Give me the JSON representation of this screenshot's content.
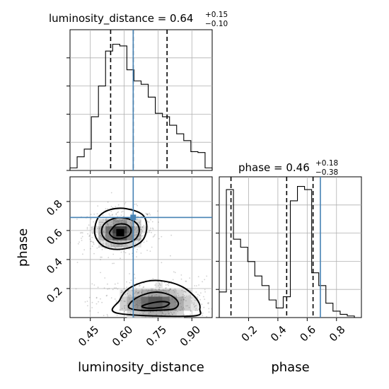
{
  "chart_data": [
    {
      "type": "histogram",
      "parameter": "luminosity_distance",
      "title": {
        "main": "luminosity_distance = 0.64",
        "plus": "+0.15",
        "minus": "−0.10"
      },
      "xlim": [
        0.36,
        0.99
      ],
      "xticks": [
        0.45,
        0.6,
        0.75,
        0.9
      ],
      "xtick_labels": [
        "0.45",
        "0.60",
        "0.75",
        "0.90"
      ],
      "bin_edges": [
        0.36,
        0.3915,
        0.423,
        0.4545,
        0.486,
        0.5175,
        0.549,
        0.5805,
        0.612,
        0.6435,
        0.675,
        0.7065,
        0.738,
        0.7695,
        0.801,
        0.8325,
        0.864,
        0.8955,
        0.927,
        0.9585,
        0.99
      ],
      "counts": [
        0.6,
        3.2,
        5.0,
        12.6,
        19.8,
        28.0,
        29.6,
        29.2,
        23.6,
        21.0,
        20.2,
        17.2,
        13.4,
        12.6,
        10.6,
        8.6,
        7.0,
        4.4,
        4.2,
        0.6
      ],
      "ylim": [
        0,
        33
      ],
      "quantile_lines": [
        0.54,
        0.64,
        0.79
      ],
      "truth": 0.64
    },
    {
      "type": "histogram",
      "parameter": "phase",
      "title": {
        "main": "phase = 0.46",
        "plus": "+0.18",
        "minus": "−0.38"
      },
      "xlim": [
        0.0,
        0.97
      ],
      "xticks": [
        0.2,
        0.4,
        0.6,
        0.8
      ],
      "xtick_labels": [
        "0.2",
        "0.4",
        "0.6",
        "0.8"
      ],
      "bin_edges": [
        0.0,
        0.0485,
        0.097,
        0.1455,
        0.194,
        0.2425,
        0.291,
        0.3395,
        0.388,
        0.4365,
        0.485,
        0.5335,
        0.582,
        0.6305,
        0.679,
        0.7275,
        0.776,
        0.825,
        0.8735,
        0.922,
        0.97
      ],
      "counts": [
        8.0,
        40.0,
        24.5,
        22.0,
        17.5,
        13.0,
        10.0,
        5.5,
        3.0,
        6.5,
        36.5,
        41.0,
        40.0,
        14.0,
        10.0,
        4.5,
        2.0,
        1.0,
        0.5,
        0.0
      ],
      "ylim": [
        0,
        44
      ],
      "quantile_lines": [
        0.08,
        0.46,
        0.64
      ],
      "truth": 0.69
    },
    {
      "type": "scatter",
      "x_parameter": "luminosity_distance",
      "y_parameter": "phase",
      "xlabel": "luminosity_distance",
      "ylabel": "phase",
      "xlim": [
        0.36,
        0.99
      ],
      "ylim": [
        0.0,
        0.97
      ],
      "yticks": [
        0.2,
        0.4,
        0.6,
        0.8
      ],
      "ytick_labels": [
        "0.2",
        "0.4",
        "0.6",
        "0.8"
      ],
      "truth": {
        "x": 0.64,
        "y": 0.69
      },
      "clusters": [
        {
          "center": [
            0.58,
            0.59
          ],
          "spread": [
            0.055,
            0.055
          ]
        },
        {
          "center": [
            0.74,
            0.1
          ],
          "spread": [
            0.09,
            0.06
          ]
        }
      ],
      "contours": [
        {
          "level": "inner",
          "paths": [
            [
              [
                0.535,
                0.58
              ],
              [
                0.545,
                0.61
              ],
              [
                0.565,
                0.64
              ],
              [
                0.6,
                0.645
              ],
              [
                0.625,
                0.625
              ],
              [
                0.63,
                0.59
              ],
              [
                0.615,
                0.56
              ],
              [
                0.585,
                0.545
              ],
              [
                0.555,
                0.55
              ]
            ],
            [
              [
                0.68,
                0.08
              ],
              [
                0.72,
                0.1
              ],
              [
                0.77,
                0.11
              ],
              [
                0.8,
                0.1
              ],
              [
                0.78,
                0.075
              ],
              [
                0.73,
                0.065
              ],
              [
                0.69,
                0.068
              ]
            ]
          ]
        },
        {
          "level": "middle",
          "paths": [
            [
              [
                0.5,
                0.6
              ],
              [
                0.515,
                0.65
              ],
              [
                0.56,
                0.685
              ],
              [
                0.62,
                0.68
              ],
              [
                0.66,
                0.64
              ],
              [
                0.665,
                0.58
              ],
              [
                0.64,
                0.53
              ],
              [
                0.59,
                0.51
              ],
              [
                0.54,
                0.52
              ],
              [
                0.51,
                0.55
              ]
            ],
            [
              [
                0.62,
                0.07
              ],
              [
                0.64,
                0.12
              ],
              [
                0.69,
                0.16
              ],
              [
                0.75,
                0.175
              ],
              [
                0.81,
                0.15
              ],
              [
                0.84,
                0.1
              ],
              [
                0.82,
                0.06
              ],
              [
                0.75,
                0.05
              ],
              [
                0.67,
                0.05
              ]
            ]
          ]
        },
        {
          "level": "outer",
          "paths": [
            [
              [
                0.47,
                0.62
              ],
              [
                0.49,
                0.7
              ],
              [
                0.54,
                0.745
              ],
              [
                0.61,
                0.75
              ],
              [
                0.68,
                0.71
              ],
              [
                0.7,
                0.63
              ],
              [
                0.685,
                0.54
              ],
              [
                0.64,
                0.49
              ],
              [
                0.57,
                0.47
              ],
              [
                0.51,
                0.49
              ],
              [
                0.475,
                0.55
              ]
            ],
            [
              [
                0.57,
                0.03
              ],
              [
                0.58,
                0.12
              ],
              [
                0.62,
                0.2
              ],
              [
                0.7,
                0.25
              ],
              [
                0.78,
                0.25
              ],
              [
                0.86,
                0.21
              ],
              [
                0.92,
                0.13
              ],
              [
                0.935,
                0.06
              ],
              [
                0.9,
                0.01
              ]
            ]
          ]
        }
      ]
    }
  ]
}
